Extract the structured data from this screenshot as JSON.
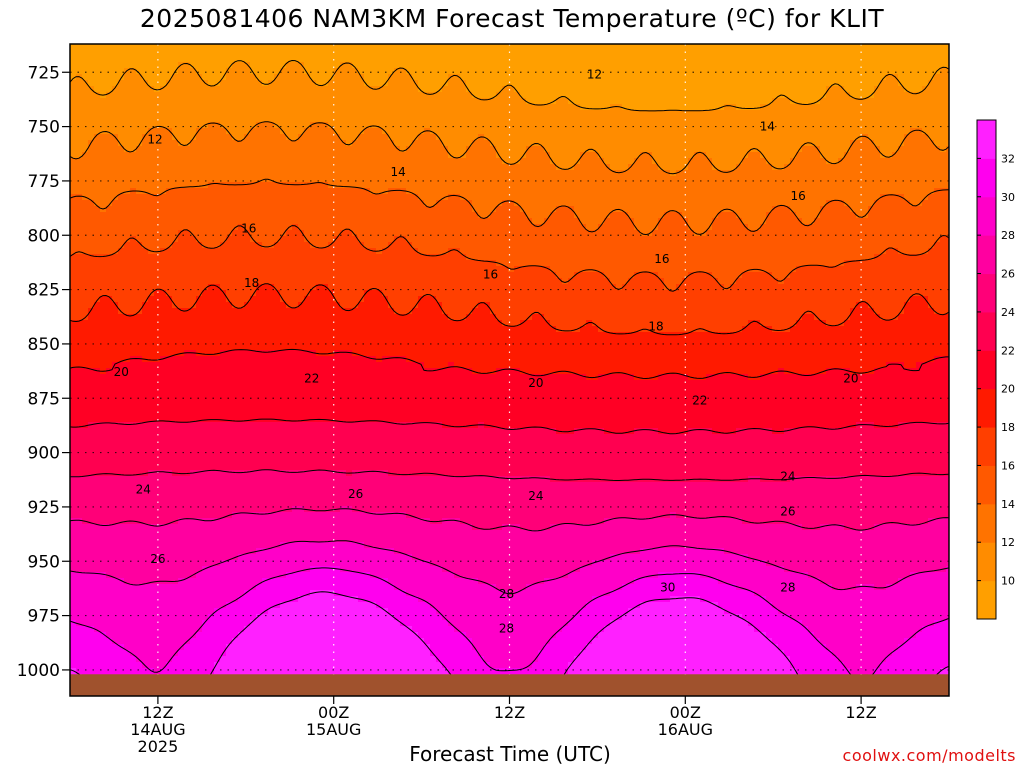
{
  "chart_data": {
    "type": "contour",
    "title": "2025081406 NAM3KM Forecast Temperature (ºC) for KLIT",
    "xlabel": "Forecast Time (UTC)",
    "ylabel": "",
    "y_ticks": [
      725,
      750,
      775,
      800,
      825,
      850,
      875,
      900,
      925,
      950,
      975,
      1000
    ],
    "y_tick_labels": [
      "725",
      "750",
      "775",
      "800",
      "825",
      "850",
      "875",
      "900",
      "925",
      "950",
      "975",
      "1000"
    ],
    "ylim": [
      1012,
      712
    ],
    "y_reversed": true,
    "x_ticks": [
      {
        "hour": 12,
        "line1": "12Z",
        "line2": "14AUG",
        "line3": "2025"
      },
      {
        "hour": 24,
        "line1": "00Z",
        "line2": "15AUG",
        "line3": ""
      },
      {
        "hour": 36,
        "line1": "12Z",
        "line2": "",
        "line3": ""
      },
      {
        "hour": 48,
        "line1": "00Z",
        "line2": "16AUG",
        "line3": ""
      },
      {
        "hour": 60,
        "line1": "12Z",
        "line2": "",
        "line3": ""
      }
    ],
    "xlim": [
      6,
      66
    ],
    "grid": true,
    "colorbar": {
      "levels": [
        8,
        10,
        12,
        14,
        16,
        18,
        20,
        22,
        24,
        26,
        28,
        30,
        32,
        34
      ],
      "labels": [
        "10",
        "12",
        "14",
        "16",
        "18",
        "20",
        "22",
        "24",
        "26",
        "28",
        "30",
        "32"
      ],
      "colors": [
        "#ff9f00",
        "#ff8c00",
        "#ff7300",
        "#ff5900",
        "#ff3f00",
        "#ff1a00",
        "#ff0024",
        "#ff0050",
        "#ff0078",
        "#ff00a0",
        "#ff00c8",
        "#ff00ee",
        "#ff20ff"
      ]
    },
    "contour_labels": [
      {
        "text": "12",
        "hour": 41.8,
        "p": 726
      },
      {
        "text": "12",
        "hour": 11.8,
        "p": 756
      },
      {
        "text": "14",
        "hour": 53.6,
        "p": 750
      },
      {
        "text": "14",
        "hour": 28.4,
        "p": 771
      },
      {
        "text": "16",
        "hour": 55.7,
        "p": 782
      },
      {
        "text": "16",
        "hour": 18.2,
        "p": 797
      },
      {
        "text": "16",
        "hour": 34.7,
        "p": 818
      },
      {
        "text": "16",
        "hour": 46.4,
        "p": 811
      },
      {
        "text": "18",
        "hour": 18.4,
        "p": 822
      },
      {
        "text": "18",
        "hour": 46.0,
        "p": 842
      },
      {
        "text": "20",
        "hour": 9.5,
        "p": 863
      },
      {
        "text": "20",
        "hour": 37.8,
        "p": 868
      },
      {
        "text": "20",
        "hour": 59.3,
        "p": 866
      },
      {
        "text": "22",
        "hour": 22.5,
        "p": 866
      },
      {
        "text": "22",
        "hour": 49.0,
        "p": 876
      },
      {
        "text": "24",
        "hour": 11.0,
        "p": 917
      },
      {
        "text": "24",
        "hour": 37.8,
        "p": 920
      },
      {
        "text": "24",
        "hour": 55.0,
        "p": 911
      },
      {
        "text": "26",
        "hour": 12.0,
        "p": 949
      },
      {
        "text": "26",
        "hour": 25.5,
        "p": 919
      },
      {
        "text": "26",
        "hour": 55.0,
        "p": 927
      },
      {
        "text": "28",
        "hour": 35.8,
        "p": 965
      },
      {
        "text": "28",
        "hour": 35.8,
        "p": 981
      },
      {
        "text": "28",
        "hour": 55.0,
        "p": 962
      },
      {
        "text": "30",
        "hour": 46.8,
        "p": 962
      }
    ],
    "ground": {
      "pressure": 1002,
      "color": "#a0522d"
    }
  },
  "labels": {
    "title": "2025081406 NAM3KM Forecast Temperature (ºC) for KLIT",
    "xaxis_title": "Forecast Time (UTC)",
    "watermark": "coolwx.com/modelts"
  }
}
